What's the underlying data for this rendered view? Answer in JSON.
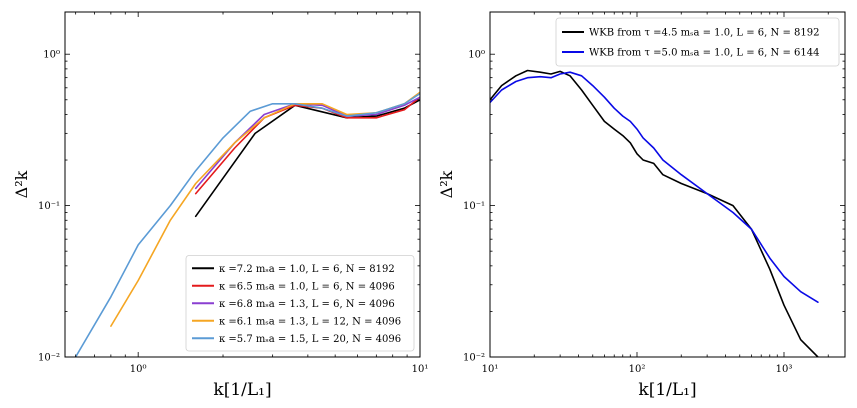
{
  "chart_data": [
    {
      "type": "line",
      "xscale": "log",
      "yscale": "log",
      "xlim": [
        0.55,
        10
      ],
      "ylim": [
        0.01,
        1.9
      ],
      "xlabel": "k[1/L₁]",
      "ylabel": "Δ²k",
      "xticks": [
        {
          "value": 1,
          "label": "10⁰"
        },
        {
          "value": 10,
          "label": "10¹"
        }
      ],
      "yticks": [
        {
          "value": 0.01,
          "label": "10⁻²"
        },
        {
          "value": 0.1,
          "label": "10⁻¹"
        },
        {
          "value": 1,
          "label": "10⁰"
        }
      ],
      "legend_position": "lower-right",
      "series": [
        {
          "name": "κ =7.2 mₛa = 1.0, L = 6, N = 8192",
          "color": "#000000",
          "x": [
            1.6,
            2.6,
            3.6,
            5.5,
            7.0,
            8.8,
            10.0
          ],
          "y": [
            0.085,
            0.3,
            0.46,
            0.38,
            0.39,
            0.44,
            0.5
          ]
        },
        {
          "name": "κ =6.5 mₛa = 1.0, L = 6, N = 4096",
          "color": "#e41a1c",
          "x": [
            1.6,
            2.2,
            2.8,
            3.6,
            4.5,
            5.5,
            7.0,
            8.8,
            10.0
          ],
          "y": [
            0.12,
            0.24,
            0.38,
            0.46,
            0.44,
            0.38,
            0.38,
            0.43,
            0.52
          ]
        },
        {
          "name": "κ =6.8 mₛa = 1.3, L = 6, N = 4096",
          "color": "#8a3fd1",
          "x": [
            1.6,
            2.2,
            2.8,
            3.6,
            4.5,
            5.5,
            7.0,
            8.8,
            10.0
          ],
          "y": [
            0.13,
            0.26,
            0.4,
            0.47,
            0.46,
            0.39,
            0.4,
            0.46,
            0.52
          ]
        },
        {
          "name": "κ =6.1 mₛa = 1.3, L = 12, N = 4096",
          "color": "#f5a623",
          "x": [
            0.8,
            1.0,
            1.3,
            1.6,
            2.2,
            2.8,
            3.6,
            4.5,
            5.5,
            7.0,
            8.8,
            10.0
          ],
          "y": [
            0.016,
            0.032,
            0.08,
            0.14,
            0.26,
            0.38,
            0.47,
            0.47,
            0.4,
            0.41,
            0.47,
            0.56
          ]
        },
        {
          "name": "κ =5.7 mₛa = 1.5, L = 20, N = 4096",
          "color": "#5b9bd5",
          "x": [
            0.6,
            0.8,
            1.0,
            1.3,
            1.6,
            2.0,
            2.5,
            3.0,
            3.6,
            4.5,
            5.5,
            7.0,
            8.8,
            10.0
          ],
          "y": [
            0.01,
            0.025,
            0.055,
            0.1,
            0.17,
            0.28,
            0.42,
            0.47,
            0.47,
            0.44,
            0.39,
            0.41,
            0.47,
            0.55
          ]
        }
      ]
    },
    {
      "type": "line",
      "xscale": "log",
      "yscale": "log",
      "xlim": [
        10,
        2600
      ],
      "ylim": [
        0.01,
        1.9
      ],
      "xlabel": "k[1/L₁]",
      "ylabel": "Δ²k",
      "xticks": [
        {
          "value": 10,
          "label": "10¹"
        },
        {
          "value": 100,
          "label": "10²"
        },
        {
          "value": 1000,
          "label": "10³"
        }
      ],
      "yticks": [
        {
          "value": 0.01,
          "label": "10⁻²"
        },
        {
          "value": 0.1,
          "label": "10⁻¹"
        },
        {
          "value": 1,
          "label": "10⁰"
        }
      ],
      "legend_position": "top-right",
      "series": [
        {
          "name": "WKB from τ =4.5 mₛa = 1.0, L = 6, N = 8192",
          "color": "#000000",
          "x": [
            10,
            12,
            15,
            18,
            22,
            26,
            30,
            35,
            42,
            50,
            60,
            70,
            80,
            90,
            100,
            110,
            130,
            150,
            200,
            300,
            450,
            600,
            800,
            1000,
            1300,
            1700
          ],
          "y": [
            0.5,
            0.62,
            0.72,
            0.78,
            0.76,
            0.74,
            0.77,
            0.72,
            0.58,
            0.46,
            0.36,
            0.32,
            0.29,
            0.26,
            0.22,
            0.2,
            0.19,
            0.16,
            0.14,
            0.12,
            0.1,
            0.07,
            0.038,
            0.022,
            0.013,
            0.01
          ]
        },
        {
          "name": "WKB from τ =5.0 mₛa = 1.0, L = 6, N = 6144",
          "color": "#0a0ae6",
          "x": [
            10,
            12,
            15,
            18,
            22,
            26,
            30,
            35,
            42,
            50,
            60,
            70,
            80,
            90,
            100,
            110,
            130,
            150,
            200,
            300,
            450,
            600,
            800,
            1000,
            1300,
            1700
          ],
          "y": [
            0.48,
            0.58,
            0.66,
            0.7,
            0.71,
            0.7,
            0.74,
            0.76,
            0.72,
            0.62,
            0.52,
            0.44,
            0.39,
            0.36,
            0.32,
            0.28,
            0.24,
            0.2,
            0.16,
            0.12,
            0.09,
            0.07,
            0.045,
            0.034,
            0.027,
            0.023
          ]
        }
      ]
    }
  ]
}
